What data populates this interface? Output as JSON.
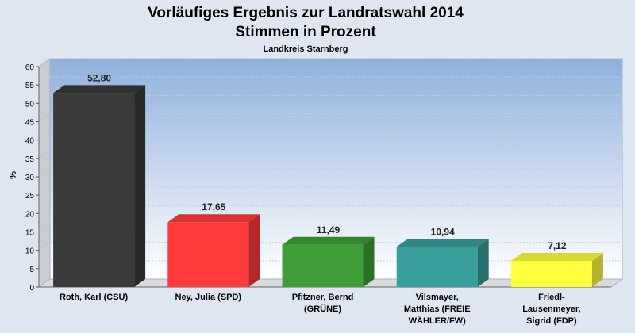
{
  "chart_data": {
    "type": "bar",
    "title": "Vorläufiges Ergebnis zur Landratswahl 2014",
    "subtitle": "Stimmen in Prozent",
    "region": "Landkreis Starnberg",
    "ylabel": "%",
    "xlabel": "",
    "ylim": [
      0,
      60
    ],
    "yticks": [
      0,
      5,
      10,
      15,
      20,
      25,
      30,
      35,
      40,
      45,
      50,
      55,
      60
    ],
    "grid": true,
    "categories": [
      [
        "Roth, Karl (CSU)"
      ],
      [
        "Ney, Julia (SPD)"
      ],
      [
        "Pfitzner, Bernd",
        "(GRÜNE)"
      ],
      [
        "Vilsmayer,",
        "Matthias (FREIE",
        "WÄHLER/FW)"
      ],
      [
        "Friedl-",
        "Lausenmeyer,",
        "Sigrid (FDP)"
      ]
    ],
    "values": [
      52.8,
      17.65,
      11.49,
      10.94,
      7.12
    ],
    "value_labels": [
      "52,80",
      "17,65",
      "11,49",
      "10,94",
      "7,12"
    ],
    "colors": [
      "#3a3a3a",
      "#ff3b3b",
      "#3f9e3a",
      "#3a9f9c",
      "#ffff40"
    ]
  }
}
